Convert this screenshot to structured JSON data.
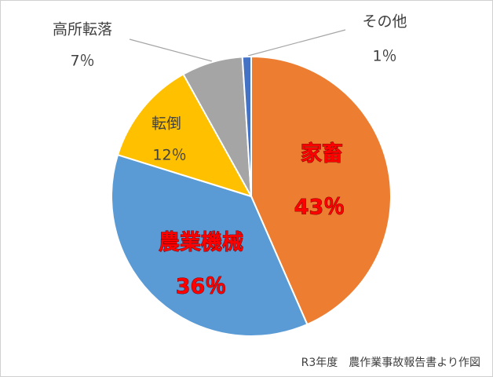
{
  "chart_data": {
    "type": "pie",
    "categories": [
      "家畜",
      "農業機械",
      "転倒",
      "高所転落",
      "その他"
    ],
    "values": [
      43,
      36,
      12,
      7,
      1
    ],
    "value_labels": [
      "43％",
      "36％",
      "12％",
      "7％",
      "1％"
    ],
    "colors": [
      "#ED7D31",
      "#5B9BD5",
      "#FFC000",
      "#A5A5A5",
      "#4472C4"
    ],
    "note": "R3年度　農作業事故報告書より作図"
  }
}
